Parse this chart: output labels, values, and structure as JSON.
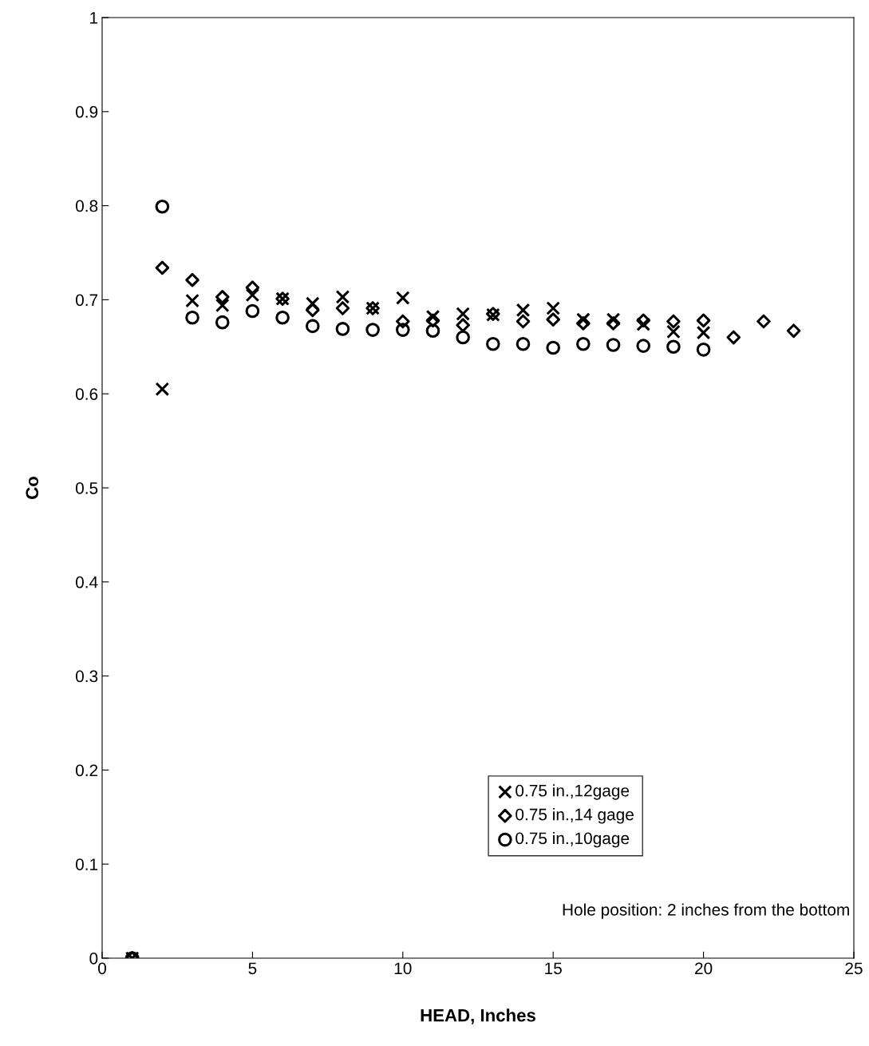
{
  "chart_data": {
    "type": "scatter",
    "xlabel": "HEAD, Inches",
    "ylabel": "Co",
    "x": [
      1,
      2,
      3,
      4,
      5,
      6,
      7,
      8,
      9,
      10,
      11,
      12,
      13,
      14,
      15,
      16,
      17,
      18,
      19,
      20
    ],
    "series": [
      {
        "name": "0.75 in.,12gage",
        "color": "#000000",
        "marker": "cross",
        "values": [
          0,
          0.605,
          0.699,
          0.694,
          0.705,
          0.701,
          0.696,
          0.703,
          0.691,
          0.702,
          0.682,
          0.685,
          0.684,
          0.689,
          0.691,
          0.679,
          0.679,
          0.674,
          0.666,
          0.665
        ]
      },
      {
        "name": "0.75 in.,14 gage",
        "color": "#000000",
        "marker": "diamond",
        "x": [
          1,
          2,
          3,
          4,
          5,
          6,
          7,
          8,
          9,
          10,
          11,
          12,
          13,
          14,
          15,
          16,
          17,
          18,
          19,
          20,
          21,
          22,
          23
        ],
        "values": [
          0,
          0.734,
          0.721,
          0.703,
          0.713,
          0.701,
          0.689,
          0.691,
          0.691,
          0.677,
          0.678,
          0.673,
          0.685,
          0.677,
          0.679,
          0.675,
          0.675,
          0.678,
          0.677,
          0.678,
          0.66,
          0.677,
          0.667
        ]
      },
      {
        "name": "0.75 in.,10gage",
        "color": "#000000",
        "marker": "circle",
        "values": [
          0,
          0.799,
          0.681,
          0.676,
          0.688,
          0.681,
          0.672,
          0.669,
          0.668,
          0.668,
          0.667,
          0.66,
          0.653,
          0.653,
          0.649,
          0.653,
          0.652,
          0.651,
          0.65,
          0.647
        ]
      }
    ],
    "xlim": [
      0,
      25
    ],
    "xticks": [
      0,
      5,
      10,
      15,
      20,
      25
    ],
    "ylim": [
      0,
      1
    ],
    "yticks": [
      0,
      0.1,
      0.2,
      0.3,
      0.4,
      0.5,
      0.6,
      0.7,
      0.8,
      0.9,
      1
    ],
    "legend": "bottom right",
    "grid": false,
    "annotations": [
      "Hole position: 2 inches from the bottom"
    ]
  }
}
